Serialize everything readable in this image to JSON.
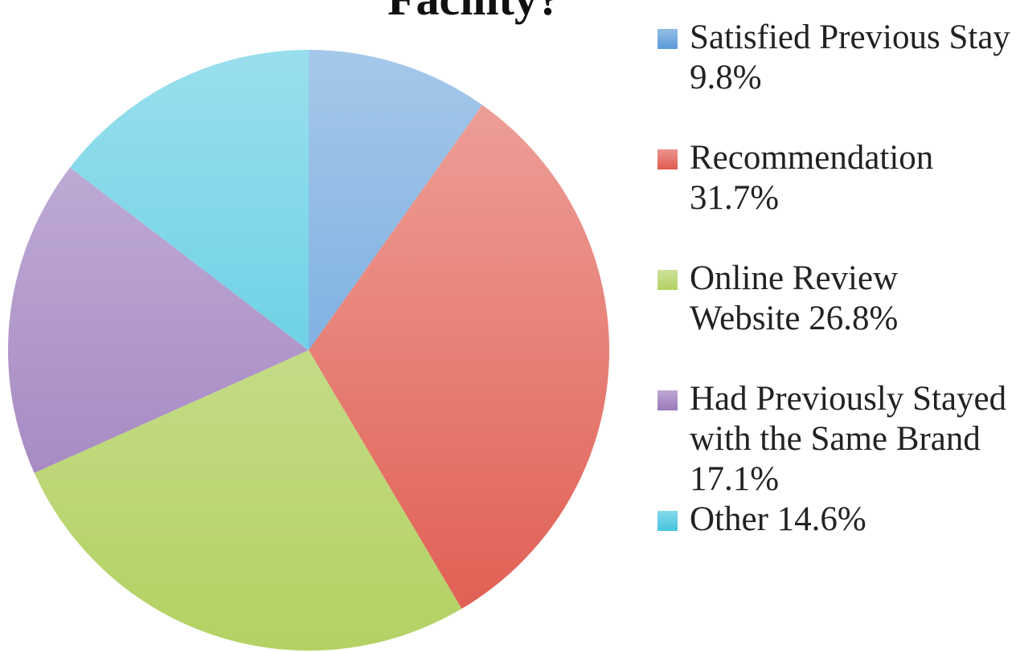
{
  "chart_data": {
    "type": "pie",
    "title": "Facility?",
    "categories": [
      "Satisfied Previous Stay",
      "Recommendation",
      "Online Review Website",
      "Had Previously Stayed with the Same Brand",
      "Other"
    ],
    "values": [
      9.8,
      31.7,
      26.8,
      17.1,
      14.6
    ],
    "value_labels": [
      "9.8%",
      "31.7%",
      "26.8%",
      "17.1%",
      "14.6%"
    ],
    "colors": [
      "#5b9bd9",
      "#e05b4f",
      "#b3d163",
      "#9a79bb",
      "#45c5de"
    ],
    "legend": "right"
  }
}
